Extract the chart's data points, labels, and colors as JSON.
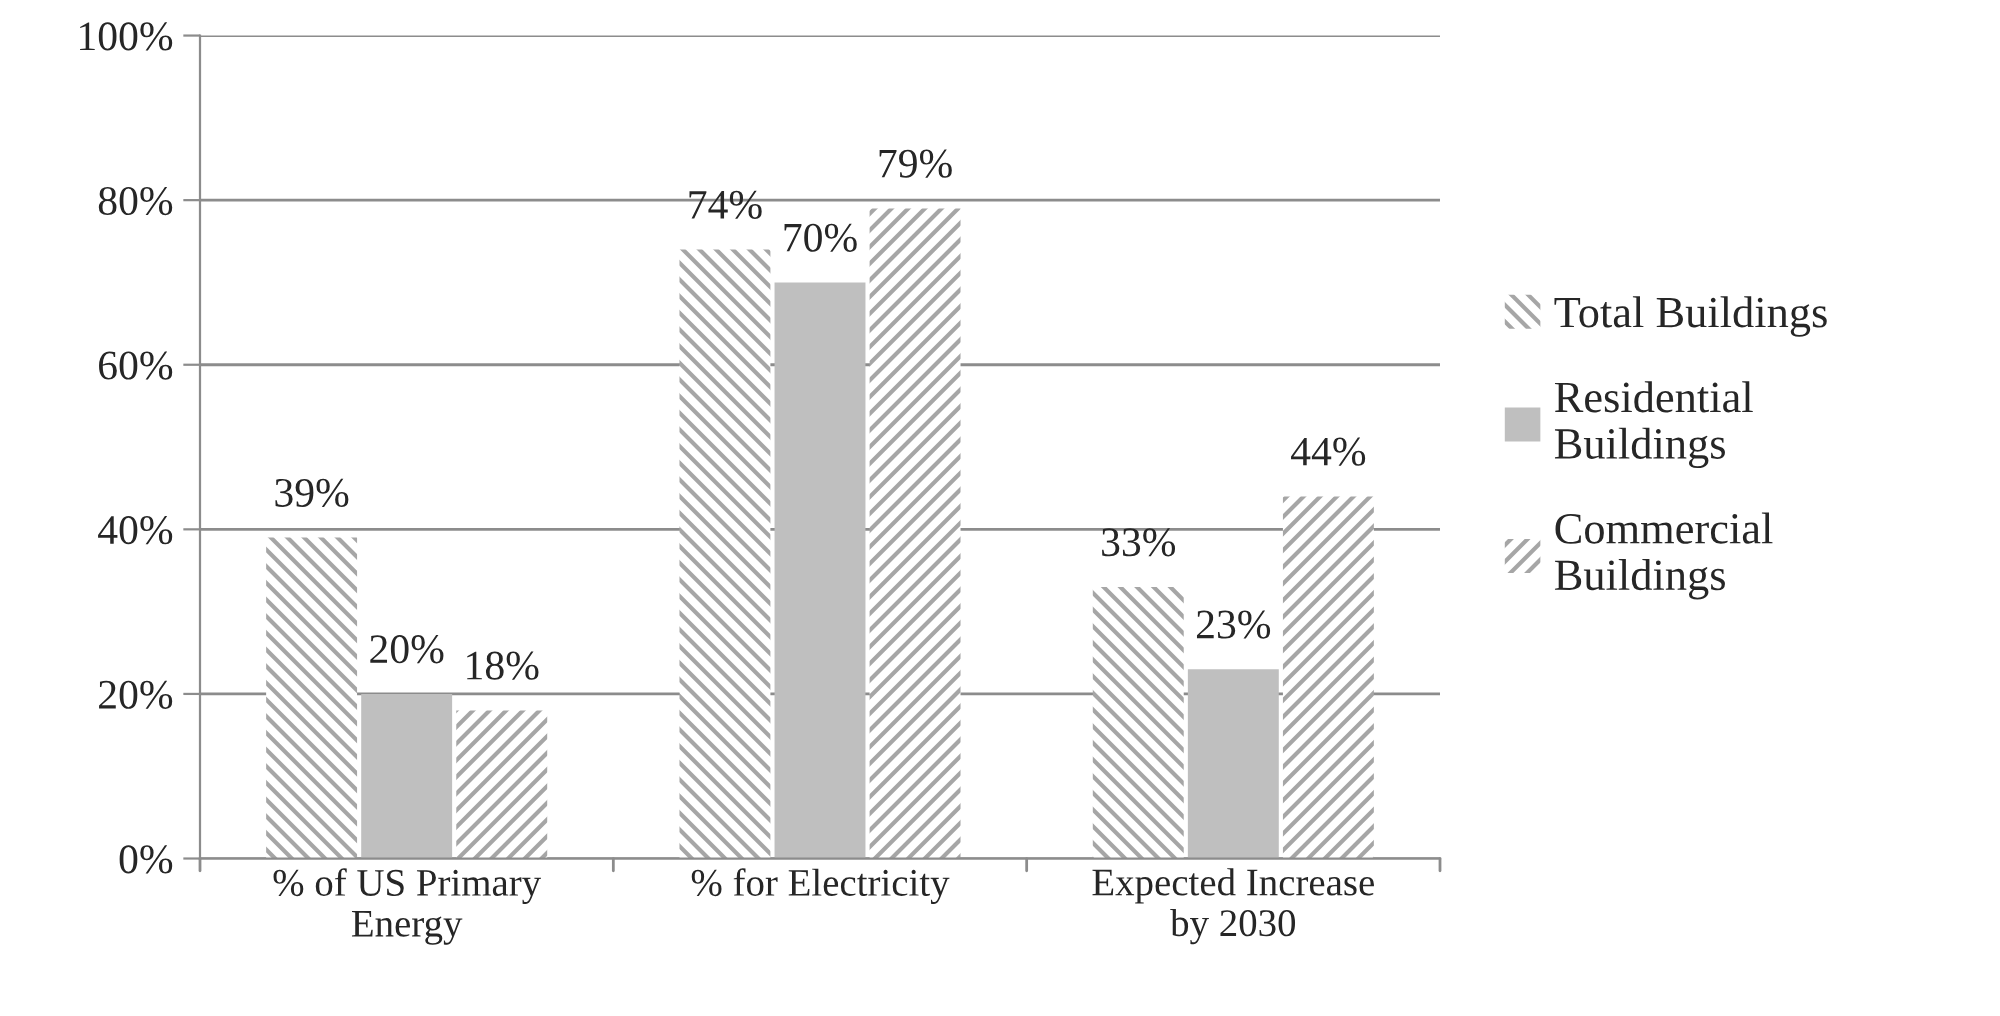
{
  "chart_data": {
    "type": "bar",
    "categories": [
      "% of US Primary\nEnergy",
      "% for Electricity",
      "Expected Increase\nby 2030"
    ],
    "series": [
      {
        "name": "Total Buildings",
        "color": "#a6a6a6",
        "values": [
          39,
          74,
          33
        ],
        "value_labels": [
          "39%",
          "74%",
          "33%"
        ]
      },
      {
        "name": "Residential\nBuildings",
        "color": "#bfbfbf",
        "values": [
          20,
          70,
          23
        ],
        "value_labels": [
          "20%",
          "70%",
          "23%"
        ]
      },
      {
        "name": "Commercial\nBuildings",
        "color": "#a6a6a6",
        "values": [
          18,
          79,
          44
        ],
        "value_labels": [
          "18%",
          "79%",
          "44%"
        ]
      }
    ],
    "ylim": [
      0,
      100
    ],
    "yticks": [
      {
        "value": 0,
        "label": "0%"
      },
      {
        "value": 20,
        "label": "20%"
      },
      {
        "value": 40,
        "label": "40%"
      },
      {
        "value": 60,
        "label": "60%"
      },
      {
        "value": 80,
        "label": "80%"
      },
      {
        "value": 100,
        "label": "100%"
      }
    ],
    "grid": "y",
    "legend": "right"
  }
}
